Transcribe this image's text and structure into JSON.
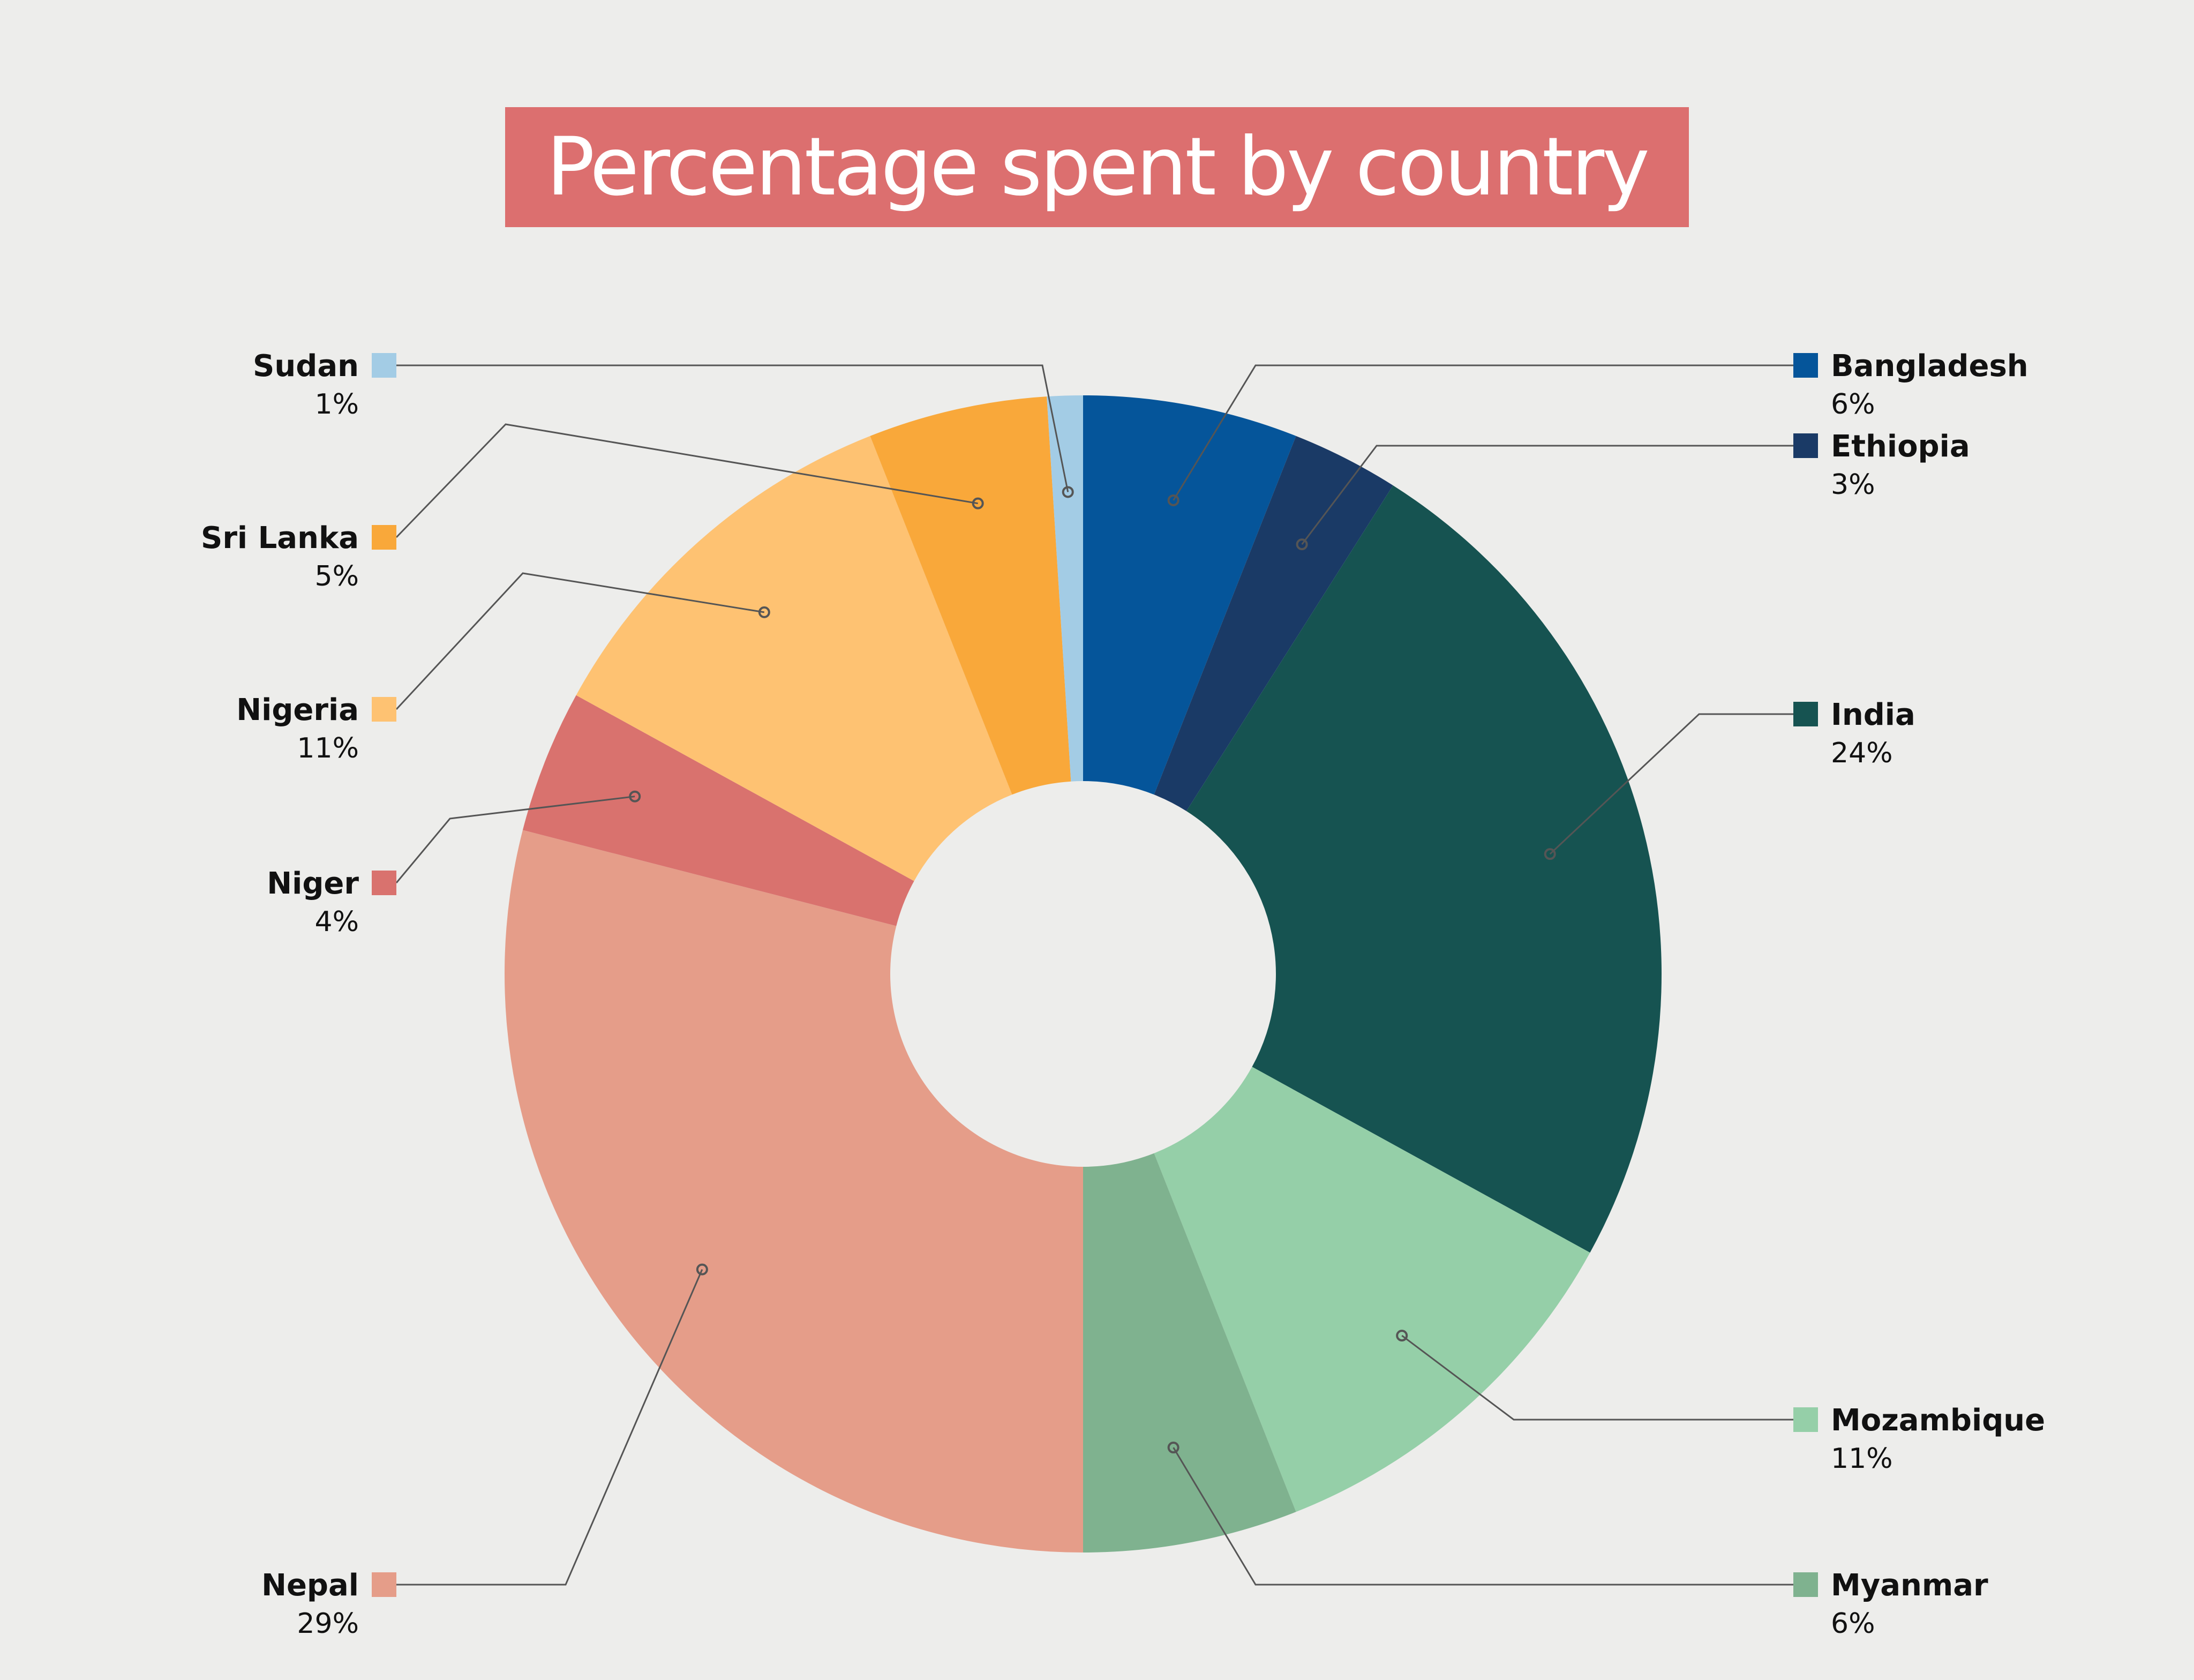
{
  "chart_data": {
    "type": "pie",
    "title": "Percentage spent by country",
    "slices": [
      {
        "label": "Bangladesh",
        "value": 6,
        "value_label": "6%",
        "color": "#05559a"
      },
      {
        "label": "Ethiopia",
        "value": 3,
        "value_label": "3%",
        "color": "#1a3a66"
      },
      {
        "label": "India",
        "value": 24,
        "value_label": "24%",
        "color": "#165351"
      },
      {
        "label": "Mozambique",
        "value": 11,
        "value_label": "11%",
        "color": "#95cfa8"
      },
      {
        "label": "Myanmar",
        "value": 6,
        "value_label": "6%",
        "color": "#7fb28f"
      },
      {
        "label": "Nepal",
        "value": 29,
        "value_label": "29%",
        "color": "#e59d89"
      },
      {
        "label": "Niger",
        "value": 4,
        "value_label": "4%",
        "color": "#d9726e"
      },
      {
        "label": "Nigeria",
        "value": 11,
        "value_label": "11%",
        "color": "#fec272"
      },
      {
        "label": "Sri Lanka",
        "value": 5,
        "value_label": "5%",
        "color": "#f9a83a"
      },
      {
        "label": "Sudan",
        "value": 1,
        "value_label": "1%",
        "color": "#a3cce5"
      }
    ],
    "legend": "callouts"
  }
}
